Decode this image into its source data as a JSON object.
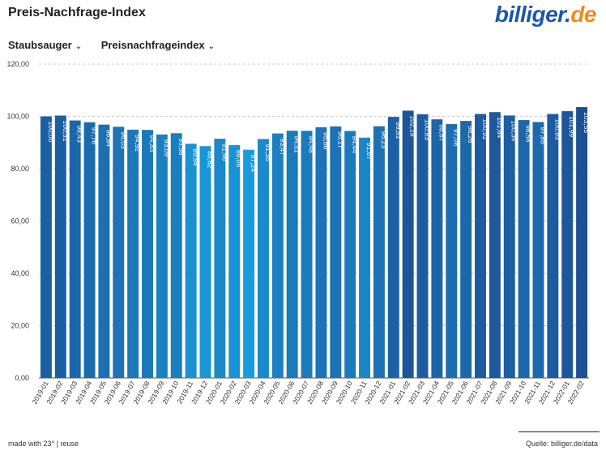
{
  "header": {
    "title": "Preis-Nachfrage-Index",
    "logo_main": "billiger.",
    "logo_tld": "de"
  },
  "filters": {
    "category": "Staubsauger",
    "metric": "Preisnachfrageindex"
  },
  "footer": {
    "credit": "made with 23° | reuse",
    "source": "Quelle: billiger.de/data"
  },
  "colors": {
    "bar_light": "#1a9cdc",
    "bar_dark": "#1d4f94",
    "grid": "#cccccc",
    "axis": "#555555"
  },
  "chart_data": {
    "type": "bar",
    "title": "Preis-Nachfrage-Index",
    "xlabel": "",
    "ylabel": "",
    "ylim": [
      0,
      120
    ],
    "yticks": [
      "0,00",
      "20,00",
      "40,00",
      "60,00",
      "80,00",
      "100,00",
      "120,00"
    ],
    "ytick_values": [
      0,
      20,
      40,
      60,
      80,
      100,
      120
    ],
    "grid": true,
    "categories": [
      "2019-01",
      "2019-02",
      "2019-03",
      "2019-04",
      "2019-05",
      "2019-06",
      "2019-07",
      "2019-08",
      "2019-09",
      "2019-10",
      "2019-11",
      "2019-12",
      "2020-01",
      "2020-02",
      "2020-03",
      "2020-04",
      "2020-05",
      "2020-06",
      "2020-07",
      "2020-08",
      "2020-09",
      "2020-10",
      "2020-11",
      "2020-12",
      "2021-01",
      "2021-02",
      "2021-03",
      "2021-04",
      "2021-05",
      "2021-06",
      "2021-07",
      "2021-08",
      "2021-09",
      "2021-10",
      "2021-11",
      "2021-12",
      "2022-01",
      "2022-02"
    ],
    "values": [
      100.0,
      100.31,
      98.43,
      97.76,
      96.84,
      96.03,
      94.92,
      94.83,
      93.09,
      93.56,
      89.54,
      88.62,
      91.46,
      89.05,
      87.24,
      91.35,
      93.47,
      94.51,
      94.48,
      95.86,
      96.17,
      94.44,
      91.87,
      96.23,
      99.81,
      102.19,
      100.83,
      98.87,
      97.08,
      98.26,
      100.92,
      101.64,
      100.34,
      98.58,
      97.85,
      100.93,
      101.99,
      103.55
    ],
    "labels": [
      "100,00",
      "100,31",
      "98,43",
      "97,76",
      "96,84",
      "96,03",
      "94,92",
      "94,83",
      "93,09",
      "93,56",
      "89,54",
      "88,62",
      "91,46",
      "89,05",
      "87,24",
      "91,35",
      "93,47",
      "94,51",
      "94,48",
      "95,86",
      "96,17",
      "94,44",
      "91,87",
      "96,23",
      "99,81",
      "102,19",
      "100,83",
      "98,87",
      "97,08",
      "98,26",
      "100,92",
      "101,64",
      "100,34",
      "98,58",
      "97,85",
      "100,93",
      "101,99",
      "103,55"
    ]
  }
}
